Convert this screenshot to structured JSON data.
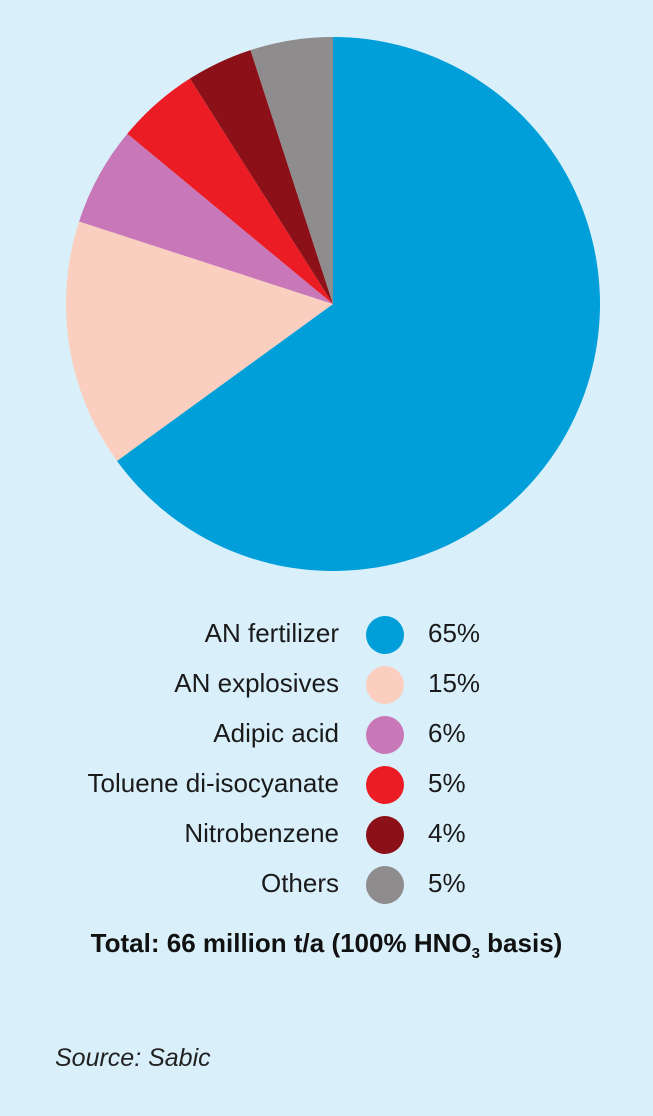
{
  "chart_data": {
    "type": "pie",
    "categories": [
      "AN fertilizer",
      "AN explosives",
      "Adipic acid",
      "Toluene di-isocyanate",
      "Nitrobenzene",
      "Others"
    ],
    "values": [
      65,
      15,
      6,
      5,
      4,
      5
    ],
    "value_labels": [
      "65%",
      "15%",
      "6%",
      "5%",
      "4%",
      "5%"
    ],
    "colors": [
      "#009fd9",
      "#fbcfc0",
      "#c878b8",
      "#ec1c24",
      "#8c1017",
      "#8f8c8e"
    ],
    "start": "12 o'clock",
    "direction": "clockwise",
    "legend_position": "bottom"
  },
  "total": {
    "prefix": "Total: 66 million t/a (100% HNO",
    "subscript": "3",
    "suffix": " basis)"
  },
  "source": "Source: Sabic"
}
